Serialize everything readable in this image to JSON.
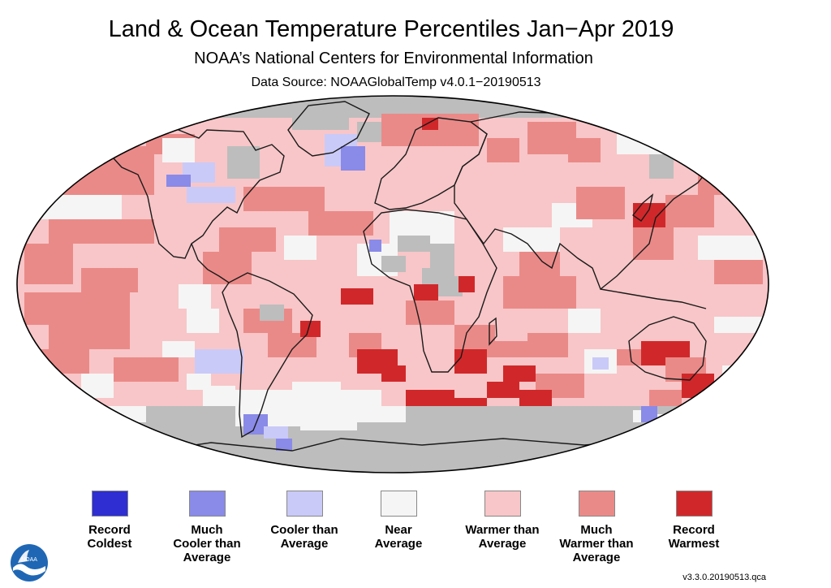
{
  "title": "Land & Ocean Temperature Percentiles Jan−Apr 2019",
  "subtitle": "NOAA’s National Centers for Environmental Information",
  "source": "Data Source: NOAAGlobalTemp v4.0.1−20190513",
  "version": "v3.3.0.20190513.qca",
  "logo_text": "NOAA",
  "colors": {
    "missing": "#bdbdbd",
    "land_outline": "#1a1a1a"
  },
  "legend": [
    {
      "label": "Record\nColdest",
      "color": "#2e2ed2"
    },
    {
      "label": "Much\nCooler than\nAverage",
      "color": "#8a8ae8"
    },
    {
      "label": "Cooler than\nAverage",
      "color": "#cacaf8"
    },
    {
      "label": "Near\nAverage",
      "color": "#f5f5f5"
    },
    {
      "label": "Warmer than\nAverage",
      "color": "#f8c6c8"
    },
    {
      "label": "Much\nWarmer than\nAverage",
      "color": "#ea8a88"
    },
    {
      "label": "Record\nWarmest",
      "color": "#d0282a"
    }
  ]
}
